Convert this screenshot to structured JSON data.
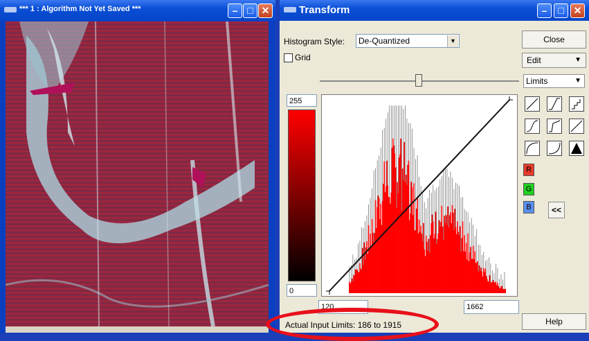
{
  "image_window": {
    "title": "*** 1 : Algorithm Not Yet Saved ***"
  },
  "transform_window": {
    "title": "Transform",
    "histogram_style_label": "Histogram Style:",
    "histogram_style_value": "De-Quantized",
    "grid_label": "Grid",
    "grid_checked": false,
    "output_max": "255",
    "output_min": "0",
    "input_min": "120",
    "input_max": "1662",
    "actual_input_limits": "Actual Input Limits: 186 to 1915",
    "close_label": "Close",
    "edit_label": "Edit",
    "limits_label": "Limits",
    "channels": [
      "R",
      "G",
      "B"
    ],
    "collapse_label": "<<",
    "help_label": "Help",
    "annotation_color": "#e8101a",
    "histogram_color": "#ff0000"
  },
  "chart_data": {
    "type": "area",
    "xlim": [
      120,
      1662
    ],
    "ylim": [
      0,
      255
    ],
    "transform_line": {
      "from": [
        120,
        0
      ],
      "to": [
        1662,
        255
      ]
    },
    "histogram_peak_x": 700
  }
}
